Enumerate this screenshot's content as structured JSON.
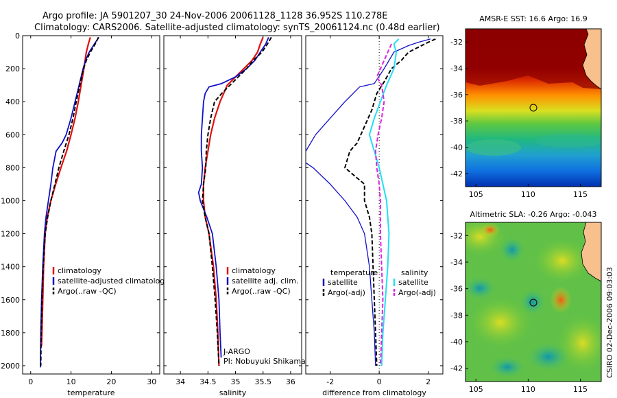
{
  "header": {
    "line1": "Argo profile: JA 5901207_30 24-Nov-2006 20061128_1128 36.952S 110.278E",
    "line2": "Climatology: CARS2006. Satellite-adjusted climatology: synTS_20061124.nc (0.48d earlier)"
  },
  "credit": "CSIRO 02-Dec-2006 09:03:03",
  "colors": {
    "red": "#e01010",
    "blue": "#1010c8",
    "black": "#000000",
    "cyan": "#20e0f0",
    "magenta": "#e020e0"
  },
  "chart_data": [
    {
      "type": "line",
      "name": "temperature-panel",
      "xlabel": "temperature",
      "ylabel": "",
      "xlim": [
        -2,
        32
      ],
      "ylim": [
        2050,
        0
      ],
      "xticks": [
        0,
        10,
        20,
        30
      ],
      "yticks": [
        0,
        200,
        400,
        600,
        800,
        1000,
        1200,
        1400,
        1600,
        1800,
        2000
      ],
      "legend": [
        "climatology",
        "satellite-adjusted climatology",
        "Argo(..raw -QC)"
      ],
      "series": [
        {
          "name": "climatology",
          "color": "red",
          "style": "solid",
          "width": 2.2,
          "points": [
            [
              14.8,
              10
            ],
            [
              14.3,
              50
            ],
            [
              13.8,
              100
            ],
            [
              13.2,
              200
            ],
            [
              12.5,
              300
            ],
            [
              11.8,
              400
            ],
            [
              11.0,
              500
            ],
            [
              10.0,
              600
            ],
            [
              8.9,
              700
            ],
            [
              7.5,
              800
            ],
            [
              6.2,
              900
            ],
            [
              5.0,
              1000
            ],
            [
              4.1,
              1100
            ],
            [
              3.6,
              1200
            ],
            [
              3.2,
              1400
            ],
            [
              3.0,
              1600
            ],
            [
              2.8,
              1800
            ],
            [
              2.7,
              1880
            ]
          ]
        },
        {
          "name": "satellite-adjusted climatology",
          "color": "blue",
          "style": "solid",
          "width": 1.8,
          "points": [
            [
              16.9,
              10
            ],
            [
              15.8,
              50
            ],
            [
              14.5,
              100
            ],
            [
              13.6,
              150
            ],
            [
              13.0,
              200
            ],
            [
              12.0,
              300
            ],
            [
              11.0,
              400
            ],
            [
              10.0,
              500
            ],
            [
              8.8,
              600
            ],
            [
              7.8,
              650
            ],
            [
              6.3,
              700
            ],
            [
              5.5,
              800
            ],
            [
              5.0,
              900
            ],
            [
              4.4,
              1000
            ],
            [
              3.8,
              1100
            ],
            [
              3.4,
              1200
            ],
            [
              3.0,
              1400
            ],
            [
              2.7,
              1600
            ],
            [
              2.5,
              1800
            ],
            [
              2.4,
              2010
            ]
          ]
        },
        {
          "name": "Argo(..raw -QC)",
          "color": "black",
          "style": "dashed",
          "width": 2,
          "points": [
            [
              16.8,
              10
            ],
            [
              16.0,
              50
            ],
            [
              14.8,
              100
            ],
            [
              13.8,
              150
            ],
            [
              13.1,
              200
            ],
            [
              12.2,
              300
            ],
            [
              11.3,
              400
            ],
            [
              10.5,
              500
            ],
            [
              9.5,
              600
            ],
            [
              8.2,
              700
            ],
            [
              7.0,
              800
            ],
            [
              6.0,
              900
            ],
            [
              5.0,
              1000
            ],
            [
              4.2,
              1100
            ],
            [
              3.6,
              1200
            ],
            [
              3.1,
              1400
            ],
            [
              2.8,
              1600
            ],
            [
              2.6,
              1800
            ],
            [
              2.5,
              2000
            ]
          ]
        }
      ]
    },
    {
      "type": "line",
      "name": "salinity-panel",
      "xlabel": "salinity",
      "ylabel": "",
      "xlim": [
        33.7,
        36.2
      ],
      "ylim": [
        2050,
        0
      ],
      "xticks": [
        34,
        34.5,
        35,
        35.5,
        36
      ],
      "legend": [
        "climatology",
        "satellite adj. clim.",
        "Argo(..raw -QC)"
      ],
      "annotation": [
        "J-ARGO",
        "PI: Nobuyuki Shikama"
      ],
      "series": [
        {
          "name": "climatology",
          "color": "red",
          "style": "solid",
          "width": 2.2,
          "points": [
            [
              35.5,
              10
            ],
            [
              35.45,
              50
            ],
            [
              35.4,
              100
            ],
            [
              35.3,
              150
            ],
            [
              35.15,
              200
            ],
            [
              35.0,
              250
            ],
            [
              34.85,
              300
            ],
            [
              34.72,
              400
            ],
            [
              34.62,
              500
            ],
            [
              34.55,
              600
            ],
            [
              34.5,
              700
            ],
            [
              34.45,
              800
            ],
            [
              34.42,
              900
            ],
            [
              34.42,
              1000
            ],
            [
              34.45,
              1100
            ],
            [
              34.52,
              1200
            ],
            [
              34.6,
              1400
            ],
            [
              34.65,
              1600
            ],
            [
              34.68,
              1800
            ],
            [
              34.7,
              2000
            ]
          ]
        },
        {
          "name": "satellite adj. clim.",
          "color": "blue",
          "style": "solid",
          "width": 1.8,
          "points": [
            [
              35.6,
              10
            ],
            [
              35.55,
              50
            ],
            [
              35.45,
              100
            ],
            [
              35.35,
              150
            ],
            [
              35.2,
              200
            ],
            [
              35.0,
              250
            ],
            [
              34.75,
              290
            ],
            [
              34.52,
              310
            ],
            [
              34.45,
              350
            ],
            [
              34.42,
              400
            ],
            [
              34.4,
              500
            ],
            [
              34.38,
              600
            ],
            [
              34.38,
              700
            ],
            [
              34.4,
              800
            ],
            [
              34.38,
              900
            ],
            [
              34.33,
              950
            ],
            [
              34.36,
              1000
            ],
            [
              34.48,
              1100
            ],
            [
              34.58,
              1200
            ],
            [
              34.65,
              1400
            ],
            [
              34.7,
              1600
            ],
            [
              34.72,
              1800
            ],
            [
              34.74,
              1950
            ]
          ]
        },
        {
          "name": "Argo(..raw -QC)",
          "color": "black",
          "style": "dashed",
          "width": 2,
          "points": [
            [
              35.65,
              10
            ],
            [
              35.58,
              50
            ],
            [
              35.48,
              100
            ],
            [
              35.32,
              150
            ],
            [
              35.2,
              200
            ],
            [
              35.05,
              250
            ],
            [
              34.9,
              300
            ],
            [
              34.75,
              350
            ],
            [
              34.62,
              400
            ],
            [
              34.55,
              500
            ],
            [
              34.5,
              600
            ],
            [
              34.47,
              700
            ],
            [
              34.46,
              800
            ],
            [
              34.42,
              900
            ],
            [
              34.4,
              1000
            ],
            [
              34.45,
              1100
            ],
            [
              34.52,
              1200
            ],
            [
              34.58,
              1400
            ],
            [
              34.63,
              1600
            ],
            [
              34.67,
              1800
            ],
            [
              34.7,
              2000
            ]
          ]
        }
      ]
    },
    {
      "type": "line",
      "name": "difference-panel",
      "xlabel": "difference from climatology",
      "ylabel": "",
      "xlim": [
        -3,
        2.6
      ],
      "ylim": [
        2050,
        0
      ],
      "xticks": [
        -2,
        0,
        2
      ],
      "legend_columns": [
        {
          "header": "temperature",
          "items": [
            "satellite",
            "Argo(-adj)"
          ]
        },
        {
          "header": "salinity",
          "items": [
            "satellite",
            "Argo(-adj)"
          ]
        }
      ],
      "series": [
        {
          "name": "temperature satellite",
          "color": "blue",
          "style": "solid",
          "width": 1.3,
          "points": [
            [
              2.1,
              20
            ],
            [
              1.6,
              40
            ],
            [
              1.2,
              60
            ],
            [
              0.6,
              100
            ],
            [
              0.2,
              200
            ],
            [
              -0.2,
              290
            ],
            [
              -0.8,
              310
            ],
            [
              -1.4,
              400
            ],
            [
              -2.0,
              500
            ],
            [
              -2.6,
              600
            ],
            [
              -3.2,
              750
            ],
            [
              -2.7,
              800
            ],
            [
              -2.0,
              900
            ],
            [
              -1.4,
              1000
            ],
            [
              -0.9,
              1100
            ],
            [
              -0.6,
              1200
            ],
            [
              -0.4,
              1400
            ],
            [
              -0.3,
              1600
            ],
            [
              -0.2,
              1800
            ],
            [
              -0.15,
              2000
            ]
          ]
        },
        {
          "name": "temperature Argo(-adj)",
          "color": "black",
          "style": "dashed",
          "width": 2,
          "points": [
            [
              2.3,
              20
            ],
            [
              2.0,
              40
            ],
            [
              1.6,
              70
            ],
            [
              1.2,
              100
            ],
            [
              0.9,
              150
            ],
            [
              0.5,
              200
            ],
            [
              0.2,
              280
            ],
            [
              -0.1,
              350
            ],
            [
              -0.3,
              450
            ],
            [
              -0.6,
              550
            ],
            [
              -0.9,
              650
            ],
            [
              -1.2,
              700
            ],
            [
              -1.4,
              800
            ],
            [
              -1.0,
              850
            ],
            [
              -0.6,
              900
            ],
            [
              -0.6,
              1000
            ],
            [
              -0.4,
              1100
            ],
            [
              -0.3,
              1200
            ],
            [
              -0.25,
              1400
            ],
            [
              -0.2,
              1600
            ],
            [
              -0.15,
              1800
            ],
            [
              -0.1,
              2000
            ]
          ]
        },
        {
          "name": "salinity satellite",
          "color": "cyan",
          "style": "solid",
          "width": 2,
          "points": [
            [
              0.8,
              20
            ],
            [
              0.6,
              50
            ],
            [
              0.7,
              100
            ],
            [
              0.6,
              200
            ],
            [
              0.3,
              300
            ],
            [
              0.05,
              400
            ],
            [
              -0.2,
              500
            ],
            [
              -0.4,
              600
            ],
            [
              -0.2,
              700
            ],
            [
              0.0,
              800
            ],
            [
              0.15,
              900
            ],
            [
              0.3,
              1000
            ],
            [
              0.4,
              1200
            ],
            [
              0.35,
              1400
            ],
            [
              0.25,
              1600
            ],
            [
              0.15,
              1800
            ],
            [
              0.1,
              2000
            ]
          ]
        },
        {
          "name": "salinity Argo(-adj)",
          "color": "magenta",
          "style": "dashed",
          "width": 2,
          "points": [
            [
              0.5,
              50
            ],
            [
              0.2,
              150
            ],
            [
              -0.1,
              250
            ],
            [
              0.1,
              300
            ],
            [
              0.2,
              400
            ],
            [
              0.1,
              500
            ],
            [
              -0.05,
              600
            ],
            [
              -0.15,
              700
            ],
            [
              -0.1,
              800
            ],
            [
              0.0,
              900
            ],
            [
              0.05,
              1000
            ],
            [
              0.05,
              1200
            ],
            [
              0.1,
              1400
            ],
            [
              0.15,
              1600
            ],
            [
              0.1,
              1800
            ],
            [
              0.05,
              2000
            ]
          ]
        }
      ]
    },
    {
      "type": "heatmap",
      "name": "sst-map",
      "title": "AMSR-E SST: 16.6 Argo: 16.9",
      "xlim": [
        104,
        117
      ],
      "ylim": [
        -43,
        -31
      ],
      "xticks": [
        105,
        110,
        115
      ],
      "yticks": [
        -32,
        -34,
        -36,
        -38,
        -40,
        -42
      ],
      "marker": [
        110.28,
        -36.95
      ]
    },
    {
      "type": "heatmap",
      "name": "sla-map",
      "title": "Altimetric SLA: -0.26 Argo: -0.043",
      "xlim": [
        104,
        117
      ],
      "ylim": [
        -43,
        -31
      ],
      "xticks": [
        105,
        110,
        115
      ],
      "yticks": [
        -32,
        -34,
        -36,
        -38,
        -40,
        -42
      ],
      "marker": [
        110.28,
        -36.95
      ]
    }
  ]
}
